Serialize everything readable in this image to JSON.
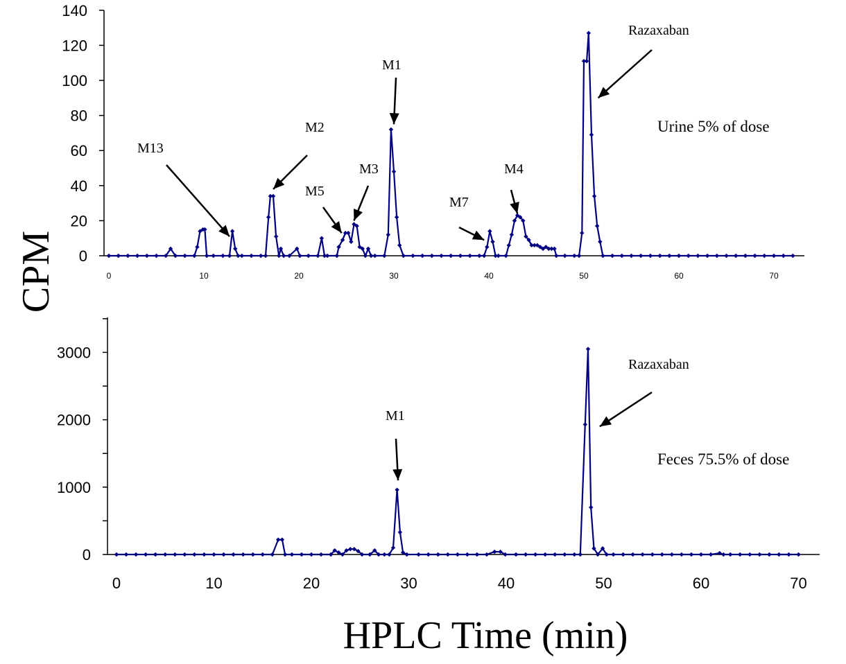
{
  "chart_data": [
    {
      "type": "line",
      "panel": "top",
      "xlabel": "",
      "ylabel": "CPM",
      "xlim": [
        0,
        72
      ],
      "ylim": [
        0,
        140
      ],
      "xticks": [
        "0",
        "10",
        "20",
        "30",
        "40",
        "50",
        "60",
        "70"
      ],
      "yticks": [
        "0",
        "20",
        "40",
        "60",
        "80",
        "100",
        "120",
        "140"
      ],
      "line_color": "#000080",
      "sample_label": "Urine 5% of dose",
      "series": [
        {
          "points": [
            [
              0,
              0
            ],
            [
              1,
              0
            ],
            [
              2,
              0
            ],
            [
              3,
              0
            ],
            [
              4,
              0
            ],
            [
              5,
              0
            ],
            [
              6,
              0
            ],
            [
              6.5,
              4
            ],
            [
              7,
              0
            ],
            [
              8,
              0
            ],
            [
              9,
              0
            ],
            [
              9.3,
              5
            ],
            [
              9.6,
              14
            ],
            [
              9.9,
              15
            ],
            [
              10.1,
              15
            ],
            [
              10.3,
              0
            ],
            [
              11,
              0
            ],
            [
              12,
              0
            ],
            [
              12.7,
              0
            ],
            [
              13.0,
              14
            ],
            [
              13.3,
              4
            ],
            [
              13.6,
              0
            ],
            [
              14,
              0
            ],
            [
              15,
              0
            ],
            [
              16,
              0
            ],
            [
              16.5,
              0
            ],
            [
              16.8,
              22
            ],
            [
              17.0,
              34
            ],
            [
              17.3,
              34
            ],
            [
              17.6,
              11
            ],
            [
              17.9,
              0
            ],
            [
              18.1,
              4
            ],
            [
              18.4,
              0
            ],
            [
              19,
              0
            ],
            [
              19.8,
              4
            ],
            [
              20.1,
              0
            ],
            [
              21,
              0
            ],
            [
              22,
              0
            ],
            [
              22.4,
              10
            ],
            [
              22.7,
              0
            ],
            [
              23,
              0
            ],
            [
              24,
              0
            ],
            [
              24.2,
              5
            ],
            [
              24.6,
              9
            ],
            [
              24.9,
              13
            ],
            [
              25.2,
              13
            ],
            [
              25.5,
              8
            ],
            [
              25.8,
              18
            ],
            [
              26.1,
              17
            ],
            [
              26.4,
              5
            ],
            [
              26.7,
              4
            ],
            [
              27.0,
              0
            ],
            [
              27.3,
              4
            ],
            [
              27.6,
              0
            ],
            [
              28,
              0
            ],
            [
              29,
              0
            ],
            [
              29.4,
              12
            ],
            [
              29.7,
              72
            ],
            [
              30.0,
              48
            ],
            [
              30.3,
              22
            ],
            [
              30.6,
              6
            ],
            [
              31,
              0
            ],
            [
              32,
              0
            ],
            [
              33,
              0
            ],
            [
              34,
              0
            ],
            [
              35,
              0
            ],
            [
              36,
              0
            ],
            [
              37,
              0
            ],
            [
              38,
              0
            ],
            [
              39,
              0
            ],
            [
              39.5,
              0
            ],
            [
              39.8,
              5
            ],
            [
              40.1,
              14
            ],
            [
              40.4,
              8
            ],
            [
              40.7,
              0
            ],
            [
              41,
              0
            ],
            [
              41.8,
              0
            ],
            [
              42.1,
              6
            ],
            [
              42.4,
              12
            ],
            [
              42.7,
              20
            ],
            [
              43.0,
              23
            ],
            [
              43.3,
              22
            ],
            [
              43.6,
              20
            ],
            [
              43.9,
              11
            ],
            [
              44.2,
              9
            ],
            [
              44.5,
              6
            ],
            [
              44.8,
              6
            ],
            [
              45.1,
              6
            ],
            [
              45.4,
              5
            ],
            [
              45.7,
              4
            ],
            [
              46.0,
              5
            ],
            [
              46.3,
              4
            ],
            [
              46.6,
              4
            ],
            [
              46.9,
              4
            ],
            [
              47.1,
              0
            ],
            [
              48,
              0
            ],
            [
              49,
              0
            ],
            [
              49.5,
              0
            ],
            [
              49.8,
              13
            ],
            [
              50.0,
              111
            ],
            [
              50.3,
              111
            ],
            [
              50.5,
              127
            ],
            [
              50.8,
              69
            ],
            [
              51.1,
              34
            ],
            [
              51.4,
              17
            ],
            [
              51.7,
              8
            ],
            [
              52,
              0
            ],
            [
              53,
              0
            ],
            [
              54,
              0
            ],
            [
              55,
              0
            ],
            [
              56,
              0
            ],
            [
              57,
              0
            ],
            [
              58,
              0
            ],
            [
              59,
              0
            ],
            [
              60,
              0
            ],
            [
              61,
              0
            ],
            [
              62,
              0
            ],
            [
              63,
              0
            ],
            [
              64,
              0
            ],
            [
              65,
              0
            ],
            [
              66,
              0
            ],
            [
              67,
              0
            ],
            [
              68,
              0
            ],
            [
              69,
              0
            ],
            [
              70,
              0
            ],
            [
              71,
              0
            ],
            [
              72,
              0
            ]
          ]
        }
      ],
      "annotations": [
        {
          "label": "M13",
          "x": 12.7,
          "y": 11
        },
        {
          "label": "M2",
          "x": 17.3,
          "y": 38
        },
        {
          "label": "M5",
          "x": 24.5,
          "y": 13
        },
        {
          "label": "M3",
          "x": 25.8,
          "y": 20
        },
        {
          "label": "M1",
          "x": 30.0,
          "y": 75
        },
        {
          "label": "M7",
          "x": 39.5,
          "y": 9
        },
        {
          "label": "M4",
          "x": 43.0,
          "y": 24
        },
        {
          "label": "Razaxaban",
          "x": 51.5,
          "y": 90
        }
      ]
    },
    {
      "type": "line",
      "panel": "bottom",
      "xlabel": "HPLC Time (min)",
      "ylabel": "CPM",
      "xlim": [
        -1,
        72
      ],
      "ylim": [
        0,
        3500
      ],
      "xticks": [
        "0",
        "10",
        "20",
        "30",
        "40",
        "50",
        "60",
        "70"
      ],
      "yticks": [
        "0",
        "1000",
        "2000",
        "3000"
      ],
      "line_color": "#000080",
      "sample_label": "Feces 75.5% of dose",
      "series": [
        {
          "points": [
            [
              0,
              0
            ],
            [
              1,
              0
            ],
            [
              2,
              0
            ],
            [
              3,
              0
            ],
            [
              4,
              0
            ],
            [
              5,
              0
            ],
            [
              6,
              0
            ],
            [
              7,
              0
            ],
            [
              8,
              0
            ],
            [
              9,
              0
            ],
            [
              10,
              0
            ],
            [
              11,
              0
            ],
            [
              12,
              0
            ],
            [
              13,
              0
            ],
            [
              14,
              0
            ],
            [
              15,
              0
            ],
            [
              16,
              0
            ],
            [
              16.6,
              220
            ],
            [
              17.0,
              220
            ],
            [
              17.3,
              0
            ],
            [
              18,
              0
            ],
            [
              19,
              0
            ],
            [
              20,
              0
            ],
            [
              21,
              0
            ],
            [
              22,
              0
            ],
            [
              22.4,
              60
            ],
            [
              22.8,
              30
            ],
            [
              23.2,
              0
            ],
            [
              23.6,
              60
            ],
            [
              24.0,
              80
            ],
            [
              24.4,
              80
            ],
            [
              24.8,
              50
            ],
            [
              25.2,
              0
            ],
            [
              26,
              0
            ],
            [
              26.5,
              60
            ],
            [
              26.9,
              0
            ],
            [
              27.5,
              0
            ],
            [
              28,
              0
            ],
            [
              28.4,
              100
            ],
            [
              28.8,
              960
            ],
            [
              29.1,
              330
            ],
            [
              29.4,
              30
            ],
            [
              29.8,
              0
            ],
            [
              31,
              0
            ],
            [
              32,
              0
            ],
            [
              33,
              0
            ],
            [
              34,
              0
            ],
            [
              35,
              0
            ],
            [
              36,
              0
            ],
            [
              37,
              0
            ],
            [
              38,
              0
            ],
            [
              38.8,
              40
            ],
            [
              39.4,
              40
            ],
            [
              39.9,
              0
            ],
            [
              41,
              0
            ],
            [
              42,
              0
            ],
            [
              43,
              0
            ],
            [
              44,
              0
            ],
            [
              45,
              0
            ],
            [
              46,
              0
            ],
            [
              47,
              0
            ],
            [
              47.6,
              0
            ],
            [
              48.1,
              1930
            ],
            [
              48.4,
              3050
            ],
            [
              48.7,
              700
            ],
            [
              49.0,
              90
            ],
            [
              49.4,
              0
            ],
            [
              49.9,
              90
            ],
            [
              50.3,
              0
            ],
            [
              51,
              0
            ],
            [
              52,
              0
            ],
            [
              53,
              0
            ],
            [
              54,
              0
            ],
            [
              55,
              0
            ],
            [
              56,
              0
            ],
            [
              57,
              0
            ],
            [
              58,
              0
            ],
            [
              59,
              0
            ],
            [
              60,
              0
            ],
            [
              61,
              0
            ],
            [
              61.9,
              20
            ],
            [
              62.3,
              0
            ],
            [
              63,
              0
            ],
            [
              64,
              0
            ],
            [
              65,
              0
            ],
            [
              66,
              0
            ],
            [
              67,
              0
            ],
            [
              68,
              0
            ],
            [
              69,
              0
            ],
            [
              70,
              0
            ]
          ]
        }
      ],
      "annotations": [
        {
          "label": "M1",
          "x": 28.9,
          "y": 1100
        },
        {
          "label": "Razaxaban",
          "x": 49.6,
          "y": 1900
        }
      ]
    }
  ],
  "labels": {
    "y_axis_title": "CPM",
    "x_axis_title": "HPLC Time (min)",
    "urine_note": "Urine 5% of dose",
    "feces_note": "Feces 75.5% of dose"
  }
}
